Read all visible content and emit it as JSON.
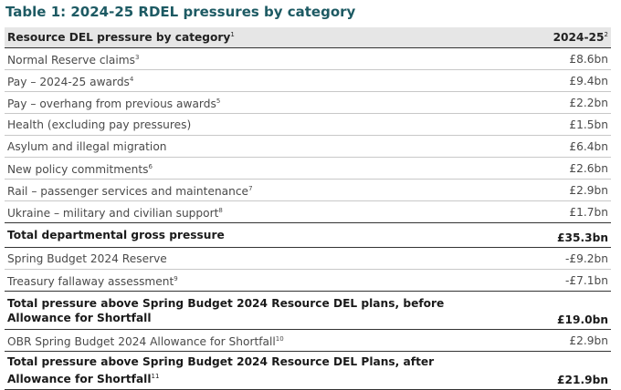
{
  "title": "Table 1: 2024-25 RDEL pressures by category",
  "table": {
    "header": [
      {
        "text": "Resource DEL pressure by category",
        "note": "1"
      },
      {
        "text": "2024-25",
        "note": "2"
      }
    ],
    "rows": [
      {
        "label": "Normal Reserve claims",
        "note": "3",
        "value": "£8.6bn",
        "bold": false
      },
      {
        "label": "Pay – 2024-25 awards",
        "note": "4",
        "value": "£9.4bn",
        "bold": false
      },
      {
        "label": "Pay – overhang from previous awards",
        "note": "5",
        "value": "£2.2bn",
        "bold": false
      },
      {
        "label": "Health (excluding pay pressures)",
        "value": "£1.5bn",
        "bold": false
      },
      {
        "label": "Asylum and illegal migration",
        "value": "£6.4bn",
        "bold": false
      },
      {
        "label": "New policy commitments",
        "note": "6",
        "value": "£2.6bn",
        "bold": false
      },
      {
        "label": "Rail – passenger services and maintenance",
        "note": "7",
        "value": "£2.9bn",
        "bold": false
      },
      {
        "label": "Ukraine – military and civilian support",
        "note": "8",
        "value": "£1.7bn",
        "bold": false
      },
      {
        "label": "Total departmental gross pressure",
        "value": "£35.3bn",
        "bold": true
      },
      {
        "label": "Spring Budget 2024 Reserve",
        "value": "-£9.2bn",
        "bold": false
      },
      {
        "label": "Treasury fallaway assessment",
        "note": "9",
        "value": "-£7.1bn",
        "bold": false
      },
      {
        "label": "Total pressure above Spring Budget 2024 Resource DEL plans, before Allowance for Shortfall",
        "value": "£19.0bn",
        "bold": true
      },
      {
        "label": "OBR Spring Budget 2024 Allowance for Shortfall",
        "note": "10",
        "value": "£2.9bn",
        "bold": false
      },
      {
        "label": "Total pressure above Spring Budget 2024 Resource DEL Plans, after Allowance for Shortfall",
        "note": "11",
        "value": "£21.9bn",
        "bold": true
      }
    ]
  }
}
